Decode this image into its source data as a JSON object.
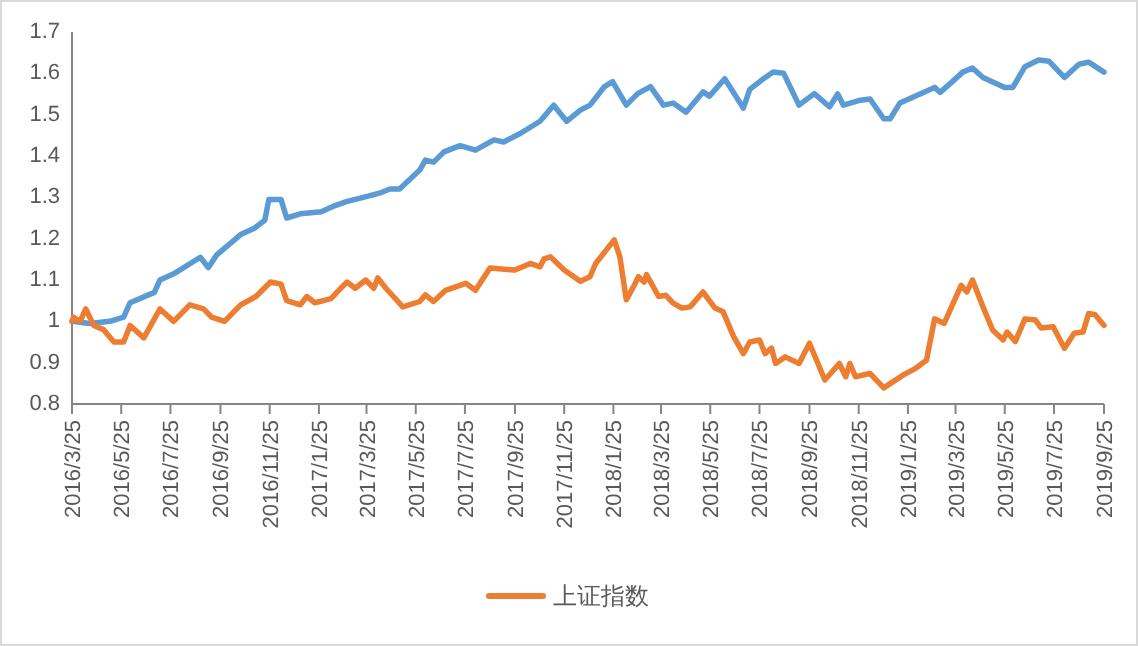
{
  "chart_data": {
    "type": "line",
    "xlim": [
      "2016-03-25",
      "2019-09-25"
    ],
    "ylim": [
      0.8,
      1.7
    ],
    "yticks": [
      0.8,
      0.9,
      1,
      1.1,
      1.2,
      1.3,
      1.4,
      1.5,
      1.6,
      1.7
    ],
    "xticks": [
      {
        "value": "2016-03-25",
        "label": "2016/3/25"
      },
      {
        "value": "2016-05-25",
        "label": "2016/5/25"
      },
      {
        "value": "2016-07-25",
        "label": "2016/7/25"
      },
      {
        "value": "2016-09-25",
        "label": "2016/9/25"
      },
      {
        "value": "2016-11-25",
        "label": "2016/11/25"
      },
      {
        "value": "2017-01-25",
        "label": "2017/1/25"
      },
      {
        "value": "2017-03-25",
        "label": "2017/3/25"
      },
      {
        "value": "2017-05-25",
        "label": "2017/5/25"
      },
      {
        "value": "2017-07-25",
        "label": "2017/7/25"
      },
      {
        "value": "2017-09-25",
        "label": "2017/9/25"
      },
      {
        "value": "2017-11-25",
        "label": "2017/11/25"
      },
      {
        "value": "2018-01-25",
        "label": "2018/1/25"
      },
      {
        "value": "2018-03-25",
        "label": "2018/3/25"
      },
      {
        "value": "2018-05-25",
        "label": "2018/5/25"
      },
      {
        "value": "2018-07-25",
        "label": "2018/7/25"
      },
      {
        "value": "2018-09-25",
        "label": "2018/9/25"
      },
      {
        "value": "2018-11-25",
        "label": "2018/11/25"
      },
      {
        "value": "2019-01-25",
        "label": "2019/1/25"
      },
      {
        "value": "2019-03-25",
        "label": "2019/3/25"
      },
      {
        "value": "2019-05-25",
        "label": "2019/5/25"
      },
      {
        "value": "2019-07-25",
        "label": "2019/7/25"
      },
      {
        "value": "2019-09-25",
        "label": "2019/9/25"
      }
    ],
    "legend": "bottom",
    "series": [
      {
        "color": "#5b9bd5",
        "x": [
          "2016-03-25",
          "2016-04-16",
          "2016-05-11",
          "2016-05-28",
          "2016-06-05",
          "2016-07-05",
          "2016-07-12",
          "2016-07-29",
          "2016-08-31",
          "2016-09-10",
          "2016-09-20",
          "2016-10-20",
          "2016-11-06",
          "2016-11-19",
          "2016-11-24",
          "2016-12-09",
          "2016-12-16",
          "2017-01-02",
          "2017-01-28",
          "2017-02-14",
          "2017-03-01",
          "2017-03-21",
          "2017-04-10",
          "2017-04-23",
          "2017-05-05",
          "2017-05-30",
          "2017-06-06",
          "2017-06-16",
          "2017-06-29",
          "2017-07-19",
          "2017-08-07",
          "2017-08-30",
          "2017-09-11",
          "2017-10-02",
          "2017-10-26",
          "2017-11-12",
          "2017-11-28",
          "2017-12-15",
          "2017-12-27",
          "2018-01-14",
          "2018-01-24",
          "2018-02-10",
          "2018-02-24",
          "2018-03-12",
          "2018-03-28",
          "2018-04-09",
          "2018-04-25",
          "2018-05-16",
          "2018-05-24",
          "2018-06-12",
          "2018-07-05",
          "2018-07-13",
          "2018-07-30",
          "2018-08-11",
          "2018-08-24",
          "2018-09-12",
          "2018-10-01",
          "2018-10-20",
          "2018-10-30",
          "2018-11-06",
          "2018-11-27",
          "2018-12-09",
          "2018-12-26",
          "2019-01-03",
          "2019-01-15",
          "2019-02-09",
          "2019-02-27",
          "2019-03-06",
          "2019-03-21",
          "2019-04-03",
          "2019-04-15",
          "2019-04-28",
          "2019-05-25",
          "2019-06-04",
          "2019-06-19",
          "2019-07-06",
          "2019-07-19",
          "2019-08-07",
          "2019-08-25",
          "2019-09-06",
          "2019-09-25"
        ],
        "values": [
          1.0,
          0.995,
          1.0,
          1.01,
          1.045,
          1.07,
          1.1,
          1.115,
          1.155,
          1.13,
          1.16,
          1.21,
          1.225,
          1.245,
          1.295,
          1.295,
          1.25,
          1.26,
          1.265,
          1.28,
          1.29,
          1.3,
          1.31,
          1.32,
          1.32,
          1.366,
          1.39,
          1.385,
          1.41,
          1.425,
          1.414,
          1.439,
          1.434,
          1.455,
          1.484,
          1.523,
          1.484,
          1.511,
          1.523,
          1.568,
          1.58,
          1.523,
          1.551,
          1.568,
          1.523,
          1.528,
          1.506,
          1.555,
          1.545,
          1.587,
          1.516,
          1.561,
          1.587,
          1.603,
          1.6,
          1.523,
          1.551,
          1.519,
          1.55,
          1.523,
          1.535,
          1.538,
          1.49,
          1.49,
          1.528,
          1.55,
          1.566,
          1.554,
          1.58,
          1.603,
          1.613,
          1.59,
          1.566,
          1.566,
          1.616,
          1.632,
          1.629,
          1.59,
          1.622,
          1.627,
          1.603
        ]
      },
      {
        "name": "上证指数",
        "color": "#ed7d31",
        "x": [
          "2016-03-25",
          "2016-03-27",
          "2016-04-04",
          "2016-04-11",
          "2016-04-21",
          "2016-05-03",
          "2016-05-16",
          "2016-05-28",
          "2016-06-05",
          "2016-06-22",
          "2016-07-12",
          "2016-07-29",
          "2016-08-18",
          "2016-09-04",
          "2016-09-14",
          "2016-09-30",
          "2016-10-20",
          "2016-11-08",
          "2016-11-26",
          "2016-12-09",
          "2016-12-16",
          "2017-01-02",
          "2017-01-10",
          "2017-01-20",
          "2017-02-09",
          "2017-02-21",
          "2017-03-01",
          "2017-03-11",
          "2017-03-24",
          "2017-04-03",
          "2017-04-08",
          "2017-04-18",
          "2017-05-09",
          "2017-05-30",
          "2017-06-06",
          "2017-06-16",
          "2017-07-01",
          "2017-07-26",
          "2017-08-07",
          "2017-08-25",
          "2017-09-25",
          "2017-10-14",
          "2017-10-26",
          "2017-10-31",
          "2017-11-08",
          "2017-11-25",
          "2017-12-15",
          "2017-12-27",
          "2018-01-03",
          "2018-01-26",
          "2018-02-02",
          "2018-02-10",
          "2018-02-20",
          "2018-02-25",
          "2018-03-04",
          "2018-03-07",
          "2018-03-22",
          "2018-03-31",
          "2018-04-09",
          "2018-04-20",
          "2018-04-30",
          "2018-05-16",
          "2018-05-31",
          "2018-06-10",
          "2018-06-23",
          "2018-07-05",
          "2018-07-13",
          "2018-07-25",
          "2018-08-01",
          "2018-08-09",
          "2018-08-14",
          "2018-08-26",
          "2018-09-12",
          "2018-09-25",
          "2018-10-14",
          "2018-11-01",
          "2018-11-09",
          "2018-11-14",
          "2018-11-21",
          "2018-12-09",
          "2018-12-26",
          "2019-01-20",
          "2019-02-04",
          "2019-02-17",
          "2019-02-27",
          "2019-03-11",
          "2019-03-21",
          "2019-04-01",
          "2019-04-08",
          "2019-04-15",
          "2019-04-28",
          "2019-05-10",
          "2019-05-23",
          "2019-05-28",
          "2019-06-07",
          "2019-06-19",
          "2019-07-02",
          "2019-07-09",
          "2019-07-24",
          "2019-08-07",
          "2019-08-19",
          "2019-08-30",
          "2019-09-06",
          "2019-09-14",
          "2019-09-25"
        ],
        "values": [
          1.0,
          1.01,
          1.0,
          1.03,
          0.99,
          0.98,
          0.95,
          0.95,
          0.99,
          0.96,
          1.03,
          1.0,
          1.04,
          1.03,
          1.01,
          1.0,
          1.04,
          1.06,
          1.095,
          1.09,
          1.05,
          1.04,
          1.06,
          1.045,
          1.055,
          1.08,
          1.095,
          1.08,
          1.1,
          1.08,
          1.105,
          1.08,
          1.035,
          1.048,
          1.064,
          1.048,
          1.075,
          1.092,
          1.075,
          1.129,
          1.124,
          1.14,
          1.132,
          1.151,
          1.156,
          1.124,
          1.097,
          1.108,
          1.14,
          1.197,
          1.156,
          1.052,
          1.088,
          1.108,
          1.095,
          1.113,
          1.06,
          1.063,
          1.044,
          1.032,
          1.035,
          1.071,
          1.032,
          1.023,
          0.963,
          0.922,
          0.95,
          0.955,
          0.922,
          0.935,
          0.898,
          0.914,
          0.898,
          0.947,
          0.858,
          0.898,
          0.866,
          0.898,
          0.866,
          0.874,
          0.839,
          0.871,
          0.887,
          0.906,
          1.006,
          0.995,
          1.039,
          1.087,
          1.071,
          1.1,
          1.035,
          0.979,
          0.955,
          0.974,
          0.951,
          1.006,
          1.003,
          0.984,
          0.987,
          0.935,
          0.971,
          0.974,
          1.019,
          1.016,
          0.99
        ]
      }
    ]
  }
}
